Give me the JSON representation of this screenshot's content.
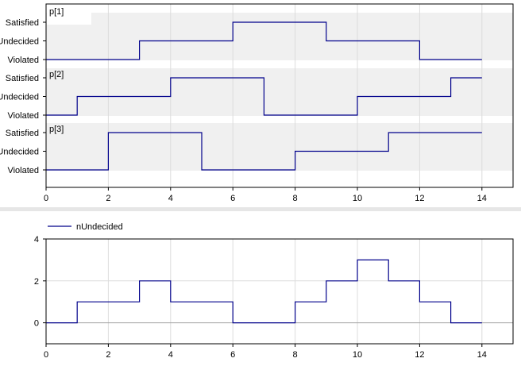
{
  "colors": {
    "line": "#00008b",
    "band": "#f0f0f0",
    "grid": "#dcdcdc",
    "frame": "#000000",
    "separator": "#e6e6e6",
    "zero_line": "#a0a0a0"
  },
  "chart_data": [
    {
      "type": "line",
      "step": true,
      "panels": [
        {
          "label": "p[1]",
          "x": [
            0,
            3,
            6,
            9,
            12,
            14
          ],
          "y": [
            "Violated",
            "Undecided",
            "Satisfied",
            "Undecided",
            "Violated",
            "Violated"
          ]
        },
        {
          "label": "p[2]",
          "x": [
            0,
            1,
            4,
            7,
            10,
            13,
            14
          ],
          "y": [
            "Violated",
            "Undecided",
            "Satisfied",
            "Violated",
            "Undecided",
            "Satisfied",
            "Satisfied"
          ]
        },
        {
          "label": "p[3]",
          "x": [
            0,
            2,
            5,
            8,
            11,
            14
          ],
          "y": [
            "Violated",
            "Satisfied",
            "Violated",
            "Undecided",
            "Satisfied",
            "Satisfied"
          ]
        }
      ],
      "levels": [
        "Violated",
        "Undecided",
        "Satisfied"
      ],
      "xlim": [
        0,
        15
      ],
      "xticks": [
        0,
        2,
        4,
        6,
        8,
        10,
        12,
        14
      ],
      "grid": true
    },
    {
      "type": "line",
      "step": true,
      "series": [
        {
          "name": "nUndecided",
          "x": [
            0,
            1,
            3,
            4,
            6,
            8,
            9,
            10,
            11,
            12,
            13,
            14
          ],
          "y": [
            0,
            1,
            2,
            1,
            0,
            1,
            2,
            3,
            2,
            1,
            0,
            0
          ]
        }
      ],
      "xlim": [
        0,
        15
      ],
      "ylim": [
        -1,
        4
      ],
      "xticks": [
        0,
        2,
        4,
        6,
        8,
        10,
        12,
        14
      ],
      "yticks": [
        0,
        2,
        4
      ],
      "legend": "top-left",
      "grid": true
    }
  ]
}
